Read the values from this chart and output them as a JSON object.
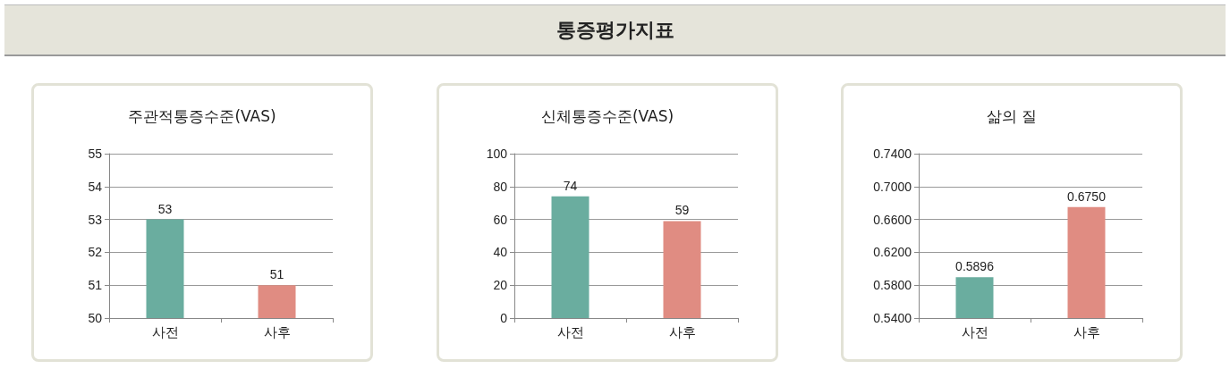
{
  "chart_data": [
    {
      "type": "other",
      "title": "통증평가지표"
    },
    {
      "type": "bar",
      "title": "주관적통증수준(VAS)",
      "categories": [
        "사전",
        "사후"
      ],
      "values": [
        53,
        51
      ],
      "colors": [
        "#6aad9f",
        "#e08c82"
      ],
      "ylim": [
        50,
        55
      ],
      "yticks": [
        50,
        51,
        52,
        53,
        54,
        55
      ],
      "grid": "y",
      "data_labels": true
    },
    {
      "type": "bar",
      "title": "신체통증수준(VAS)",
      "categories": [
        "사전",
        "사후"
      ],
      "values": [
        74,
        59
      ],
      "colors": [
        "#6aad9f",
        "#e08c82"
      ],
      "ylim": [
        0,
        100
      ],
      "yticks": [
        0,
        20,
        40,
        60,
        80,
        100
      ],
      "grid": "y",
      "data_labels": true
    },
    {
      "type": "bar",
      "title": "삶의 질",
      "categories": [
        "사전",
        "사후"
      ],
      "values": [
        0.5896,
        0.675
      ],
      "value_labels": [
        "0.5896",
        "0.6750"
      ],
      "colors": [
        "#6aad9f",
        "#e08c82"
      ],
      "ylim": [
        0.54,
        0.74
      ],
      "yticks": [
        {
          "value": 0.54,
          "label": "0.5400"
        },
        {
          "value": 0.58,
          "label": "0.5800"
        },
        {
          "value": 0.62,
          "label": "0.6200"
        },
        {
          "value": 0.66,
          "label": "0.6600"
        },
        {
          "value": 0.7,
          "label": "0.7000"
        },
        {
          "value": 0.74,
          "label": "0.7400"
        }
      ],
      "grid": "y"
    }
  ]
}
